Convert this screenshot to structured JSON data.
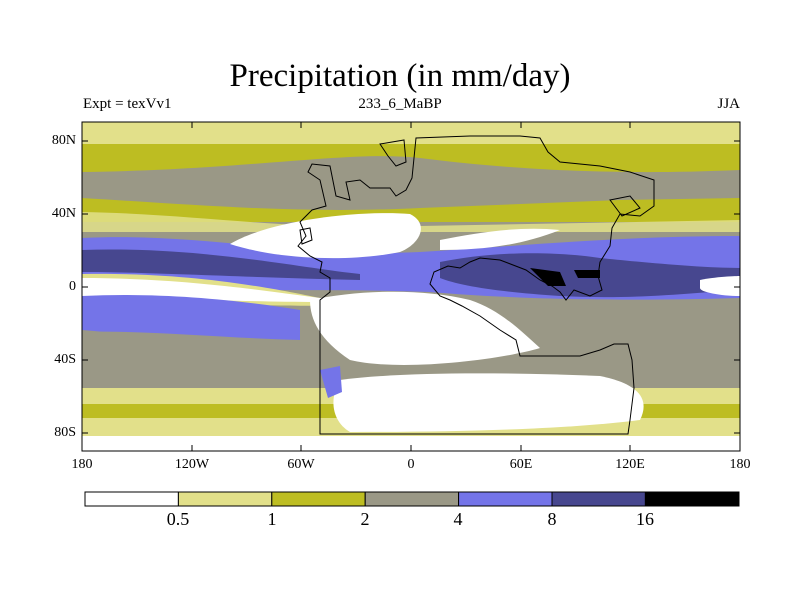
{
  "title": "Precipitation (in mm/day)",
  "left_string": "Expt = texVv1",
  "center_string": "233_6_MaBP",
  "right_string": "JJA",
  "map": {
    "lat_ticks": [
      "80N",
      "40N",
      "0",
      "40S",
      "80S"
    ],
    "lon_ticks": [
      "180",
      "120W",
      "60W",
      "0",
      "60E",
      "120E",
      "180"
    ]
  },
  "colorbar": {
    "labels": [
      "0.5",
      "1",
      "2",
      "4",
      "8",
      "16"
    ],
    "colors": [
      "#ffffff",
      "#e2e08a",
      "#bdbd22",
      "#9a9886",
      "#7474e8",
      "#47478f",
      "#000000"
    ]
  }
}
